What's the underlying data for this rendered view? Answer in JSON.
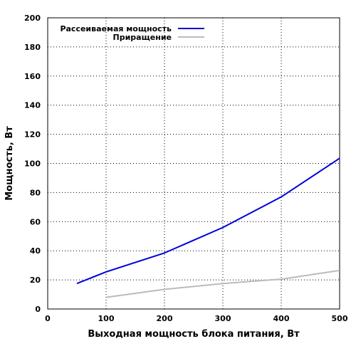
{
  "chart_data": {
    "type": "line",
    "title": "",
    "xlabel": "Выходная мощность блока питания, Вт",
    "ylabel": "Мощность, Вт",
    "xlim": [
      0,
      500
    ],
    "ylim": [
      0,
      200
    ],
    "xticks": [
      0,
      100,
      200,
      300,
      400,
      500
    ],
    "yticks": [
      0,
      20,
      40,
      60,
      80,
      100,
      120,
      140,
      160,
      180,
      200
    ],
    "grid": true,
    "legend_position": "top-center",
    "series": [
      {
        "name": "Рассеиваемая мощность",
        "color": "#0000dd",
        "x": [
          50,
          100,
          200,
          300,
          400,
          500
        ],
        "y": [
          17.5,
          25.5,
          38.5,
          56,
          77,
          103.5
        ]
      },
      {
        "name": "Приращение",
        "color": "#bbbbbb",
        "x": [
          100,
          200,
          300,
          400,
          500
        ],
        "y": [
          8,
          13.5,
          17.5,
          20.5,
          26.5
        ]
      }
    ]
  }
}
